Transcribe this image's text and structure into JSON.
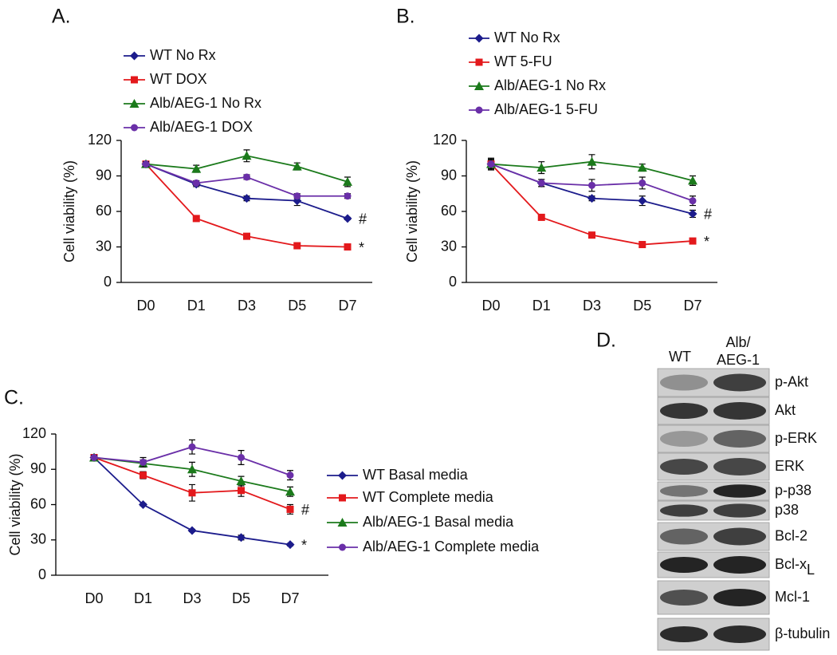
{
  "chart_data": [
    {
      "type": "line",
      "panel_label": "A.",
      "y_label": "Cell viability (%)",
      "categories": [
        "D0",
        "D1",
        "D3",
        "D5",
        "D7"
      ],
      "ylim": [
        0,
        120
      ],
      "yticks": [
        0,
        30,
        60,
        90,
        120
      ],
      "series": [
        {
          "name": "WT No Rx",
          "color": "#1c1c8c",
          "marker": "diamond",
          "values": [
            100,
            83,
            71,
            69,
            54
          ],
          "errors": [
            2,
            2,
            2,
            4,
            1
          ],
          "annotation": "#"
        },
        {
          "name": "WT DOX",
          "color": "#e3191c",
          "marker": "square",
          "values": [
            100,
            54,
            39,
            31,
            30
          ],
          "errors": [
            2,
            2,
            2,
            2,
            1
          ],
          "annotation": "*"
        },
        {
          "name": "Alb/AEG-1 No Rx",
          "color": "#1b7a1b",
          "marker": "triangle",
          "values": [
            100,
            96,
            107,
            98,
            85
          ],
          "errors": [
            2,
            3,
            5,
            3,
            4
          ]
        },
        {
          "name": "Alb/AEG-1 DOX",
          "color": "#6a2fa8",
          "marker": "circle",
          "values": [
            100,
            84,
            89,
            73,
            73
          ],
          "errors": [
            2,
            2,
            2,
            2,
            2
          ]
        }
      ]
    },
    {
      "type": "line",
      "panel_label": "B.",
      "y_label": "Cell viability (%)",
      "categories": [
        "D0",
        "D1",
        "D3",
        "D5",
        "D7"
      ],
      "ylim": [
        0,
        120
      ],
      "yticks": [
        0,
        30,
        60,
        90,
        120
      ],
      "series": [
        {
          "name": "WT No Rx",
          "color": "#1c1c8c",
          "marker": "diamond",
          "values": [
            100,
            84,
            71,
            69,
            58
          ],
          "errors": [
            4,
            3,
            2,
            4,
            3
          ],
          "annotation": "#"
        },
        {
          "name": "WT 5-FU",
          "color": "#e3191c",
          "marker": "square",
          "values": [
            100,
            55,
            40,
            32,
            35
          ],
          "errors": [
            3,
            2,
            2,
            2,
            2
          ],
          "annotation": "*"
        },
        {
          "name": "Alb/AEG-1 No Rx",
          "color": "#1b7a1b",
          "marker": "triangle",
          "values": [
            100,
            97,
            102,
            97,
            86
          ],
          "errors": [
            5,
            5,
            6,
            3,
            4
          ]
        },
        {
          "name": "Alb/AEG-1 5-FU",
          "color": "#6a2fa8",
          "marker": "circle",
          "values": [
            100,
            84,
            82,
            84,
            69
          ],
          "errors": [
            4,
            3,
            5,
            5,
            4
          ]
        }
      ]
    },
    {
      "type": "line",
      "panel_label": "C.",
      "y_label": "Cell viability (%)",
      "categories": [
        "D0",
        "D1",
        "D3",
        "D5",
        "D7"
      ],
      "ylim": [
        0,
        120
      ],
      "yticks": [
        0,
        30,
        60,
        90,
        120
      ],
      "series": [
        {
          "name": "WT Basal media",
          "color": "#1c1c8c",
          "marker": "diamond",
          "values": [
            100,
            60,
            38,
            32,
            26
          ],
          "errors": [
            2,
            1,
            1,
            2,
            1
          ],
          "annotation": "*"
        },
        {
          "name": "WT Complete media",
          "color": "#e3191c",
          "marker": "square",
          "values": [
            100,
            85,
            70,
            72,
            56
          ],
          "errors": [
            2,
            3,
            7,
            5,
            4
          ],
          "annotation": "#"
        },
        {
          "name": "Alb/AEG-1 Basal media",
          "color": "#1b7a1b",
          "marker": "triangle",
          "values": [
            100,
            95,
            90,
            80,
            71
          ],
          "errors": [
            2,
            3,
            6,
            4,
            4
          ]
        },
        {
          "name": "Alb/AEG-1 Complete media",
          "color": "#6a2fa8",
          "marker": "circle",
          "values": [
            100,
            96,
            109,
            100,
            85
          ],
          "errors": [
            2,
            4,
            6,
            6,
            4
          ]
        }
      ]
    }
  ],
  "blot": {
    "panel_label": "D.",
    "lanes": [
      "WT",
      "Alb/",
      "AEG-1"
    ],
    "proteins": [
      {
        "name": "p-Akt"
      },
      {
        "name": "Akt"
      },
      {
        "name": "p-ERK"
      },
      {
        "name": "ERK"
      },
      {
        "name": "p-p38"
      },
      {
        "name": "p38"
      },
      {
        "name": "Bcl-2"
      },
      {
        "name": "Bcl-x",
        "sub": "L"
      },
      {
        "name": "Mcl-1"
      },
      {
        "name": "β-tubulin"
      }
    ]
  }
}
